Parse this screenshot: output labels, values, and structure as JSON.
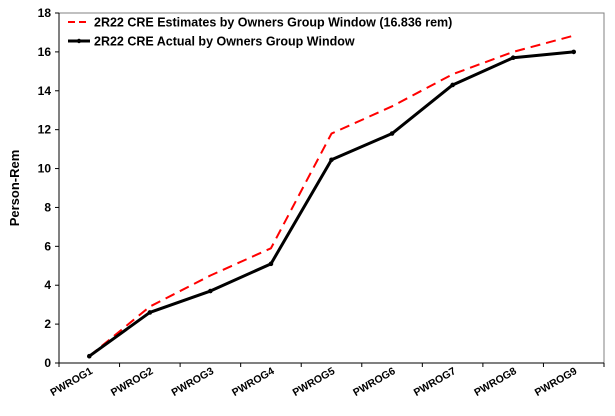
{
  "chart_data": {
    "type": "line",
    "categories": [
      "PWROG1",
      "PWROG2",
      "PWROG3",
      "PWROG4",
      "PWROG5",
      "PWROG6",
      "PWROG7",
      "PWROG8",
      "PWROG9"
    ],
    "series": [
      {
        "name": "2R22 CRE Estimates by Owners Group Window (16.836 rem)",
        "values": [
          0.35,
          2.9,
          4.5,
          5.9,
          11.8,
          13.2,
          14.85,
          16.0,
          16.836
        ],
        "color": "#ff0000",
        "style": "dashed"
      },
      {
        "name": "2R22 CRE Actual by Owners Group Window",
        "values": [
          0.35,
          2.6,
          3.7,
          5.1,
          10.45,
          11.8,
          14.3,
          15.7,
          16.0
        ],
        "color": "#000000",
        "style": "solid"
      }
    ],
    "ylabel": "Person-Rem",
    "ylim": [
      0,
      18
    ],
    "yticks": [
      "0",
      "2",
      "4",
      "6",
      "8",
      "10",
      "12",
      "14",
      "16",
      "18"
    ],
    "grid": false,
    "legend_position": "top-left"
  }
}
